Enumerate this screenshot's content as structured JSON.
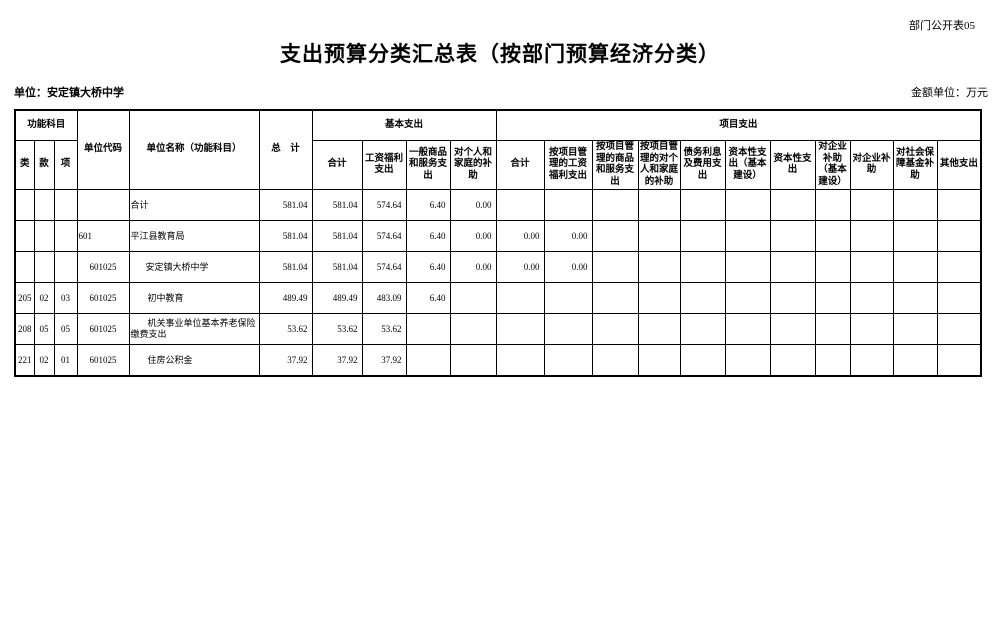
{
  "page": {
    "corner_label": "部门公开表05",
    "title": "支出预算分类汇总表（按部门预算经济分类）",
    "unit_label": "单位：安定镇大桥中学",
    "amount_unit_label": "金额单位：万元"
  },
  "table": {
    "header": {
      "func_subject": "功能科目",
      "func_class": "类",
      "func_section": "款",
      "func_item": "项",
      "unit_code": "单位代码",
      "unit_name": "单位名称（功能科目）",
      "total": "总　计",
      "basic_group": "基本支出",
      "project_group": "项目支出",
      "basic_cols": [
        "合计",
        "工资福利支出",
        "一般商品和服务支出",
        "对个人和家庭的补助"
      ],
      "project_cols": [
        "合计",
        "按项目管理的工资福利支出",
        "按项目管理的商品和服务支出",
        "按项目管理的对个人和家庭的补助",
        "债务利息及费用支出",
        "资本性支出（基本建设）",
        "资本性支出",
        "对企业补助（基本建设）",
        "对企业补助",
        "对社会保障基金补助",
        "其他支出"
      ]
    },
    "rows": [
      {
        "func_class": "",
        "func_section": "",
        "func_item": "",
        "code": "",
        "code_align": "left",
        "name": "合计",
        "indent": 0,
        "values": [
          "581.04",
          "581.04",
          "574.64",
          "6.40",
          "0.00",
          "",
          "",
          "",
          "",
          "",
          "",
          "",
          "",
          "",
          "",
          ""
        ]
      },
      {
        "func_class": "",
        "func_section": "",
        "func_item": "",
        "code": "601",
        "code_align": "left",
        "name": "平江县教育局",
        "indent": 0,
        "values": [
          "581.04",
          "581.04",
          "574.64",
          "6.40",
          "0.00",
          "0.00",
          "0.00",
          "",
          "",
          "",
          "",
          "",
          "",
          "",
          "",
          ""
        ]
      },
      {
        "func_class": "",
        "func_section": "",
        "func_item": "",
        "code": "601025",
        "code_align": "center",
        "name": "安定镇大桥中学",
        "indent": 15,
        "values": [
          "581.04",
          "581.04",
          "574.64",
          "6.40",
          "0.00",
          "0.00",
          "0.00",
          "",
          "",
          "",
          "",
          "",
          "",
          "",
          "",
          ""
        ]
      },
      {
        "func_class": "205",
        "func_section": "02",
        "func_item": "03",
        "code": "601025",
        "code_align": "center",
        "name": "初中教育",
        "indent": 17,
        "values": [
          "489.49",
          "489.49",
          "483.09",
          "6.40",
          "",
          "",
          "",
          "",
          "",
          "",
          "",
          "",
          "",
          "",
          "",
          ""
        ]
      },
      {
        "func_class": "208",
        "func_section": "05",
        "func_item": "05",
        "code": "601025",
        "code_align": "center",
        "name": "机关事业单位基本养老保险缴费支出",
        "indent": 17,
        "values": [
          "53.62",
          "53.62",
          "53.62",
          "",
          "",
          "",
          "",
          "",
          "",
          "",
          "",
          "",
          "",
          "",
          "",
          ""
        ]
      },
      {
        "func_class": "221",
        "func_section": "02",
        "func_item": "01",
        "code": "601025",
        "code_align": "center",
        "name": "住房公积金",
        "indent": 17,
        "values": [
          "37.92",
          "37.92",
          "37.92",
          "",
          "",
          "",
          "",
          "",
          "",
          "",
          "",
          "",
          "",
          "",
          "",
          ""
        ]
      }
    ]
  }
}
